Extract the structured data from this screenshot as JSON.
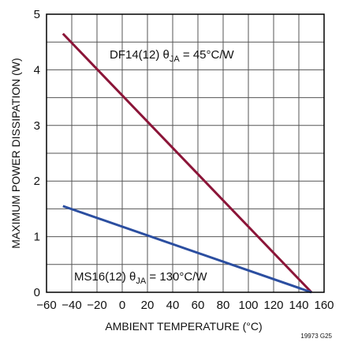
{
  "chart_data": {
    "type": "line",
    "title": "",
    "xlabel": "AMBIENT TEMPERATURE (°C)",
    "ylabel": "MAXIMUM POWER DISSIPATION (W)",
    "xlim": [
      -60,
      160
    ],
    "ylim": [
      0,
      5
    ],
    "x_ticks": [
      -60,
      -40,
      -20,
      0,
      20,
      40,
      60,
      80,
      100,
      120,
      140,
      160
    ],
    "x_tick_labels": [
      "−60",
      "−40",
      "−20",
      "0",
      "20",
      "40",
      "60",
      "80",
      "100",
      "120",
      "140",
      "160"
    ],
    "y_ticks": [
      0,
      1,
      2,
      3,
      4,
      5
    ],
    "y_tick_labels": [
      "0",
      "1",
      "2",
      "3",
      "4",
      "5"
    ],
    "grid": true,
    "series": [
      {
        "label_main": "DF14(12) θ",
        "label_sub": "JA",
        "label_rest": " = 45°C/W",
        "color": "#8b1538",
        "x": [
          -47,
          150
        ],
        "y": [
          4.65,
          0
        ]
      },
      {
        "label_main": "MS16(12) θ",
        "label_sub": "JA",
        "label_rest": " = 130°C/W",
        "color": "#2b4ea0",
        "x": [
          -47,
          150
        ],
        "y": [
          1.55,
          0
        ]
      }
    ],
    "figure_id": "19973 G25"
  }
}
